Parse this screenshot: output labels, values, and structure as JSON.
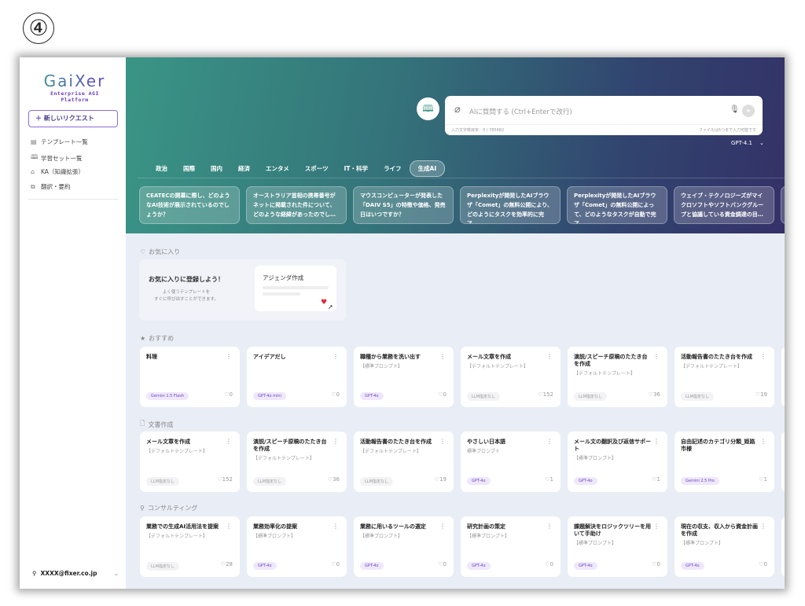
{
  "step_marker": "④",
  "sidebar": {
    "logo_text": "GaiXer",
    "logo_subtitle": "Enterprise AGI Platform",
    "new_request": "＋ 新しいリクエスト",
    "items": [
      {
        "icon": "template-icon",
        "glyph": "▤",
        "label": "テンプレート一覧"
      },
      {
        "icon": "book-icon",
        "glyph": "🕮",
        "label": "学習セット一覧"
      },
      {
        "icon": "knowledge-icon",
        "glyph": "⌂",
        "label": "KA（知識拡張）"
      },
      {
        "icon": "translate-icon",
        "glyph": "⧉",
        "label": "翻訳・要約"
      }
    ],
    "user": "XXXX@fixer.co.jp"
  },
  "search": {
    "placeholder": "AIに質問する (Ctrl+Enterで改行)",
    "char_count": "入力文字数目安：0 / 785682",
    "file_note": "ファイルは5つまで入力可能です",
    "model": "GPT-4.1"
  },
  "tabs": [
    {
      "label": "政治"
    },
    {
      "label": "国際"
    },
    {
      "label": "国内"
    },
    {
      "label": "経済"
    },
    {
      "label": "エンタメ"
    },
    {
      "label": "スポーツ"
    },
    {
      "label": "IT・科学"
    },
    {
      "label": "ライフ"
    },
    {
      "label": "生成AI",
      "active": true
    }
  ],
  "news": [
    "CEATECの開幕に際し、どのようなAI技術が展示されているのでしょうか？",
    "オーストラリア首相の携帯番号がネットに掲載された件について、どのような経緯があったのでし…",
    "マウスコンピューターが発表した「DAIV S5」の特徴や価格、発売日はいつですか？",
    "Perplexityが開発したAIブラウザ「Comet」の無料公開により、どのようにタスクを効率的に完了…",
    "Perplexityが開発したAIブラウザ「Comet」の無料公開によって、どのようなタスクが自動で完了…",
    "ウェイブ・テクノロジーズがマイクロソフトやソフトバンクグループと協議している資金調達の目…"
  ],
  "favorites": {
    "heading": "お気に入り",
    "title": "お気に入りに登録しよう！",
    "subtitle_1": "よく使うテンプレートを",
    "subtitle_2": "すぐに呼び出すことができます。",
    "example_card": "アジェンダ作成"
  },
  "sections": [
    {
      "heading": "おすすめ",
      "icon": "star-icon",
      "glyph": "★",
      "cards": [
        {
          "title": "料理",
          "sub": "",
          "tag": "Gemini 1.5 Flash",
          "likes": "0"
        },
        {
          "title": "アイデアだし",
          "sub": "",
          "tag": "GPT-4o mini",
          "likes": "0"
        },
        {
          "title": "職種から業務を洗い出す",
          "sub": "【標準プロンプト】",
          "tag": "GPT-4o",
          "likes": "0"
        },
        {
          "title": "メール文章を作成",
          "sub": "【デフォルトテンプレート】",
          "tag": "LLM指定なし",
          "likes": "152"
        },
        {
          "title": "演説/スピーチ原稿のたたき台を作成",
          "sub": "【デフォルトテンプレート】",
          "tag": "LLM指定なし",
          "likes": "36"
        },
        {
          "title": "活動報告書のたたき台を作成",
          "sub": "【デフォルトテンプレート】",
          "tag": "LLM指定なし",
          "likes": "19"
        }
      ]
    },
    {
      "heading": "文書作成",
      "icon": "document-icon",
      "glyph": "🗋",
      "cards": [
        {
          "title": "メール文章を作成",
          "sub": "【デフォルトテンプレート】",
          "tag": "LLM指定なし",
          "likes": "152"
        },
        {
          "title": "演説/スピーチ原稿のたたき台を作成",
          "sub": "【デフォルトテンプレート】",
          "tag": "LLM指定なし",
          "likes": "36"
        },
        {
          "title": "活動報告書のたたき台を作成",
          "sub": "【デフォルトテンプレート】",
          "tag": "LLM指定なし",
          "likes": "19"
        },
        {
          "title": "やさしい日本語",
          "sub": "標準プロンプト",
          "tag": "GPT-4o",
          "likes": "1"
        },
        {
          "title": "メール文の翻訳及び返信サポート",
          "sub": "【標準プロンプト】",
          "tag": "GPT-4o",
          "likes": "1"
        },
        {
          "title": "自由記述のカテゴリ分類_姫路市様",
          "sub": "",
          "tag": "Gemini 2.5 Pro",
          "likes": "1"
        }
      ]
    },
    {
      "heading": "コンサルティング",
      "icon": "person-icon",
      "glyph": "⚲",
      "cards": [
        {
          "title": "業務での生成AI活用法を提案",
          "sub": "【デフォルトテンプレート】",
          "tag": "LLM指定なし",
          "likes": "28"
        },
        {
          "title": "業務効率化の提案",
          "sub": "【標準プロンプト】",
          "tag": "GPT-4o",
          "likes": "0"
        },
        {
          "title": "業務に用いるツールの選定",
          "sub": "【標準プロンプト】",
          "tag": "GPT-4o",
          "likes": "0"
        },
        {
          "title": "研究計画の策定",
          "sub": "【標準プロンプト】",
          "tag": "GPT-4o",
          "likes": "0"
        },
        {
          "title": "課題解決をロジックツリーを用いて手助け",
          "sub": "【標準プロンプト】",
          "tag": "GPT-4o",
          "likes": "0"
        },
        {
          "title": "現在の収支、収入から資金計画を作成",
          "sub": "【標準プロンプト】",
          "tag": "GPT-4o",
          "likes": "0"
        }
      ]
    }
  ]
}
